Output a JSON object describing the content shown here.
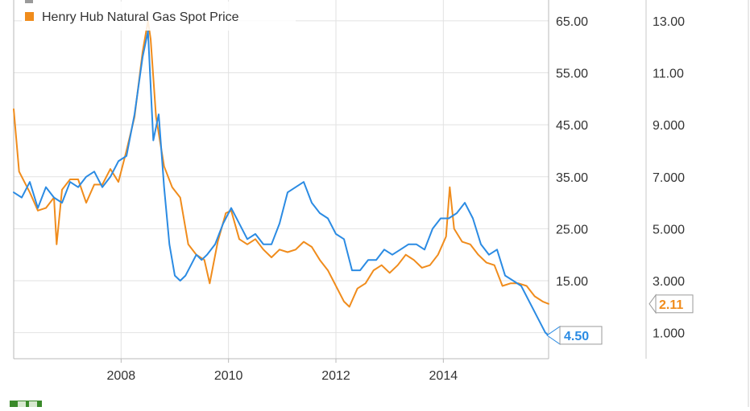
{
  "chart_data": {
    "type": "line",
    "x_axis": {
      "ticks": [
        {
          "value": 2008,
          "label": "2008"
        },
        {
          "value": 2010,
          "label": "2010"
        },
        {
          "value": 2012,
          "label": "2012"
        },
        {
          "value": 2014,
          "label": "2014"
        }
      ],
      "range": [
        2006.0,
        2015.96
      ]
    },
    "y_axes": [
      {
        "side": "right-inner",
        "range": [
          0,
          69
        ],
        "ticks": [
          {
            "value": 65,
            "label": "65.00"
          },
          {
            "value": 55,
            "label": "55.00"
          },
          {
            "value": 45,
            "label": "45.00"
          },
          {
            "value": 35,
            "label": "35.00"
          },
          {
            "value": 25,
            "label": "25.00"
          },
          {
            "value": 15,
            "label": "15.00"
          },
          {
            "value": 5,
            "label": ""
          }
        ]
      },
      {
        "side": "right-outer",
        "range": [
          0,
          13.8
        ],
        "ticks": [
          {
            "value": 13,
            "label": "13.00"
          },
          {
            "value": 11,
            "label": "11.00"
          },
          {
            "value": 9,
            "label": "9.000"
          },
          {
            "value": 7,
            "label": "7.000"
          },
          {
            "value": 5,
            "label": "5.000"
          },
          {
            "value": 3,
            "label": "3.000"
          },
          {
            "value": 1,
            "label": "1.000"
          }
        ]
      }
    ],
    "grid": true,
    "legend_position": "top-left",
    "series": [
      {
        "name": "",
        "color": "#2b8be3",
        "axis": 0,
        "end_label": "4.50",
        "x": [
          2006.0,
          2006.15,
          2006.3,
          2006.45,
          2006.6,
          2006.75,
          2006.9,
          2007.05,
          2007.2,
          2007.35,
          2007.5,
          2007.65,
          2007.8,
          2007.95,
          2008.1,
          2008.25,
          2008.4,
          2008.5,
          2008.6,
          2008.7,
          2008.8,
          2008.9,
          2009.0,
          2009.1,
          2009.2,
          2009.3,
          2009.4,
          2009.5,
          2009.6,
          2009.75,
          2009.9,
          2010.05,
          2010.2,
          2010.35,
          2010.5,
          2010.65,
          2010.8,
          2010.95,
          2011.1,
          2011.25,
          2011.4,
          2011.55,
          2011.7,
          2011.85,
          2012.0,
          2012.15,
          2012.3,
          2012.45,
          2012.6,
          2012.75,
          2012.9,
          2013.05,
          2013.2,
          2013.35,
          2013.5,
          2013.65,
          2013.8,
          2013.95,
          2014.1,
          2014.25,
          2014.4,
          2014.55,
          2014.7,
          2014.85,
          2015.0,
          2015.15,
          2015.3,
          2015.45,
          2015.6,
          2015.75,
          2015.9,
          2015.96
        ],
        "values": [
          32,
          31,
          34,
          29,
          33,
          31,
          30,
          34,
          33,
          35,
          36,
          33,
          35,
          38,
          39,
          47,
          58,
          63,
          42,
          47,
          33,
          22,
          16,
          15,
          16,
          18,
          20,
          19,
          20,
          22,
          26,
          29,
          26,
          23,
          24,
          22,
          22,
          26,
          32,
          33,
          34,
          30,
          28,
          27,
          24,
          23,
          17,
          17,
          19,
          19,
          21,
          20,
          21,
          22,
          22,
          21,
          25,
          27,
          27,
          28,
          30,
          27,
          22,
          20,
          21,
          16,
          15,
          14,
          11,
          8,
          5,
          4.5
        ]
      },
      {
        "name": "Henry Hub Natural Gas Spot Price",
        "color": "#f08c1c",
        "axis": 1,
        "end_label": "2.11",
        "x": [
          2006.0,
          2006.1,
          2006.2,
          2006.3,
          2006.45,
          2006.6,
          2006.75,
          2006.8,
          2006.9,
          2007.05,
          2007.2,
          2007.35,
          2007.5,
          2007.65,
          2007.8,
          2007.95,
          2008.1,
          2008.25,
          2008.4,
          2008.5,
          2008.55,
          2008.65,
          2008.8,
          2008.95,
          2009.1,
          2009.25,
          2009.4,
          2009.55,
          2009.65,
          2009.8,
          2009.95,
          2010.05,
          2010.2,
          2010.35,
          2010.5,
          2010.65,
          2010.8,
          2010.95,
          2011.1,
          2011.25,
          2011.4,
          2011.55,
          2011.7,
          2011.85,
          2012.0,
          2012.15,
          2012.25,
          2012.4,
          2012.55,
          2012.7,
          2012.85,
          2013.0,
          2013.15,
          2013.3,
          2013.45,
          2013.6,
          2013.75,
          2013.9,
          2014.05,
          2014.12,
          2014.2,
          2014.35,
          2014.5,
          2014.65,
          2014.8,
          2014.95,
          2015.1,
          2015.25,
          2015.4,
          2015.55,
          2015.7,
          2015.85,
          2015.96
        ],
        "values": [
          9.6,
          7.2,
          6.8,
          6.4,
          5.7,
          5.8,
          6.2,
          4.4,
          6.5,
          6.9,
          6.9,
          6.0,
          6.7,
          6.7,
          7.3,
          6.8,
          8.0,
          9.3,
          11.8,
          13.0,
          12.3,
          9.3,
          7.4,
          6.6,
          6.2,
          4.4,
          4.0,
          3.8,
          2.9,
          4.5,
          5.6,
          5.7,
          4.6,
          4.4,
          4.6,
          4.2,
          3.9,
          4.2,
          4.1,
          4.2,
          4.5,
          4.3,
          3.8,
          3.4,
          2.8,
          2.2,
          2.0,
          2.7,
          2.9,
          3.4,
          3.6,
          3.3,
          3.6,
          4.0,
          3.8,
          3.5,
          3.6,
          4.0,
          4.7,
          6.6,
          5.0,
          4.5,
          4.4,
          4.0,
          3.7,
          3.6,
          2.8,
          2.9,
          2.9,
          2.8,
          2.4,
          2.2,
          2.11
        ]
      }
    ]
  },
  "legend": {
    "items": [
      {
        "label": "Henry Hub Natural Gas Spot Price",
        "color": "#f08c1c"
      }
    ]
  }
}
